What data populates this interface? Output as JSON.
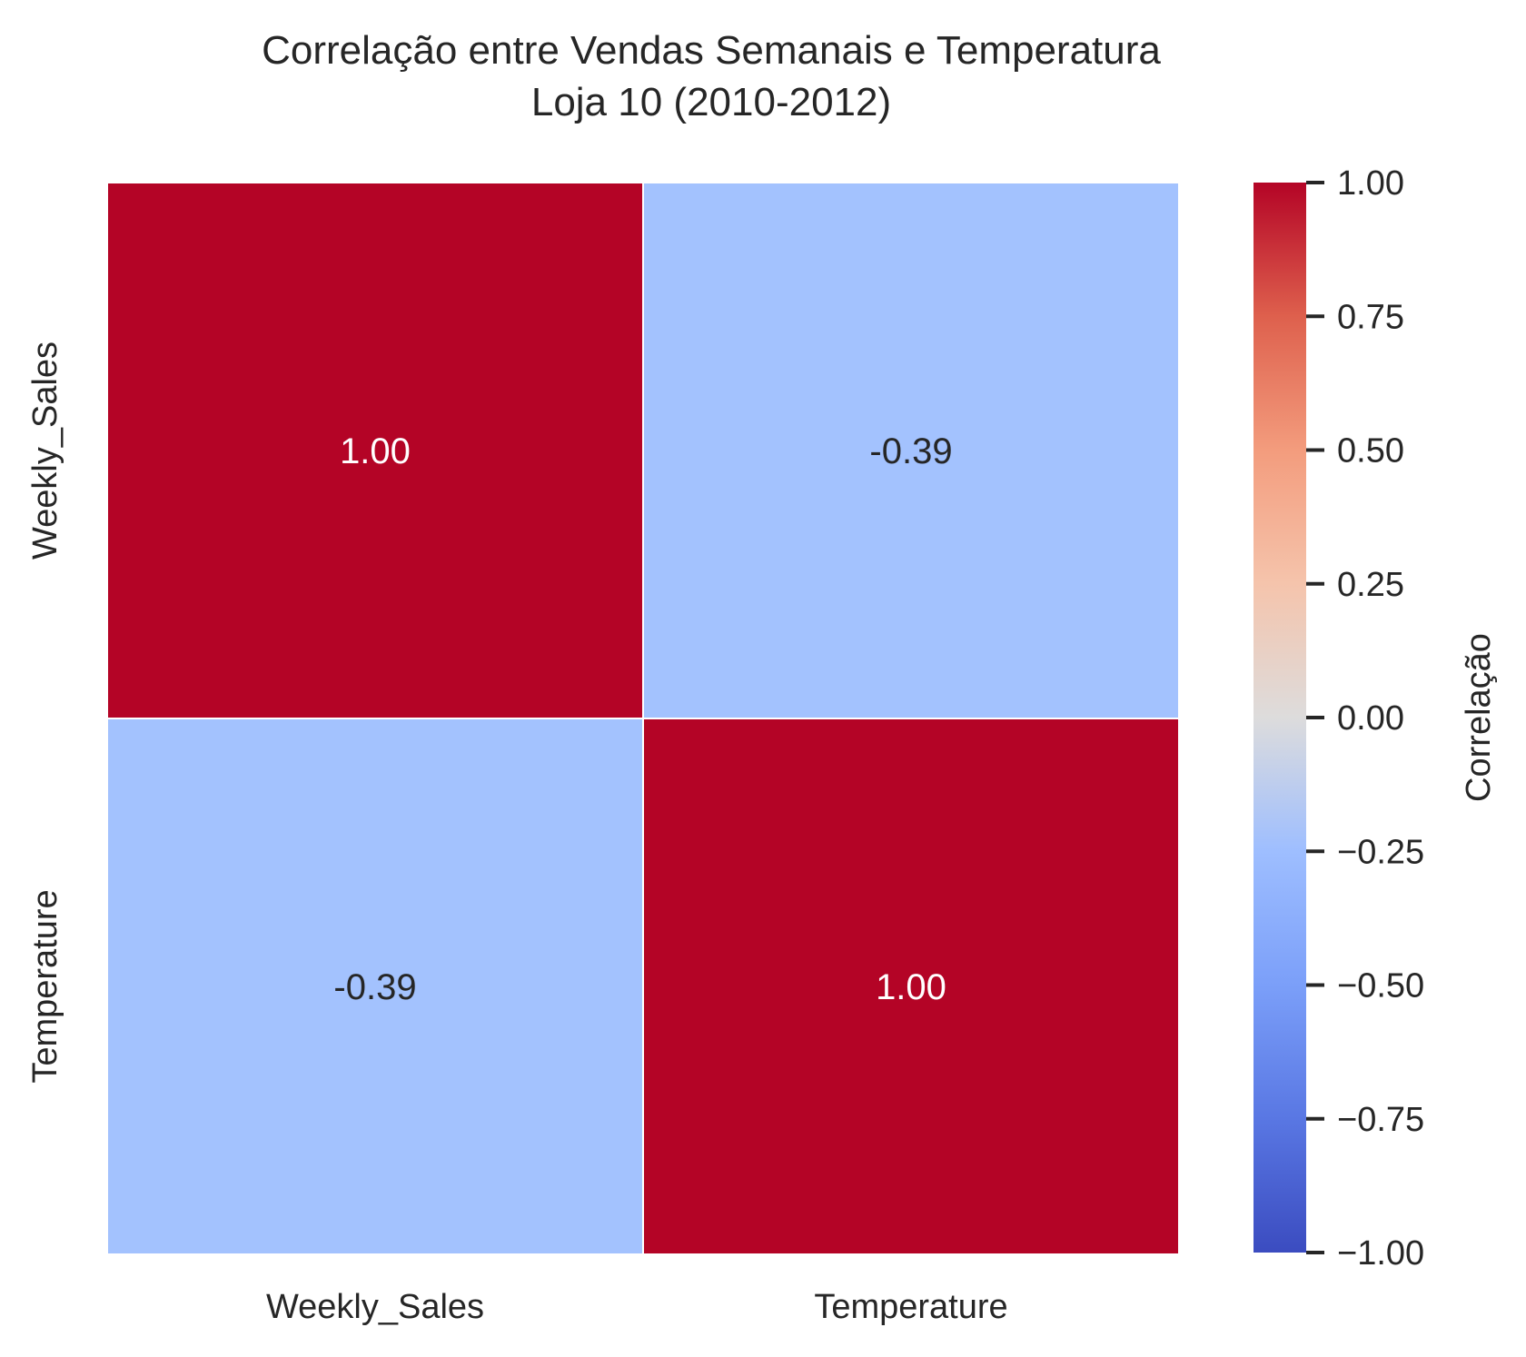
{
  "chart_data": {
    "type": "heatmap",
    "title": "Correlação entre Vendas Semanais e Temperatura",
    "subtitle": "Loja 10 (2010-2012)",
    "x_categories": [
      "Weekly_Sales",
      "Temperature"
    ],
    "y_categories": [
      "Weekly_Sales",
      "Temperature"
    ],
    "values": [
      [
        1.0,
        -0.39
      ],
      [
        -0.39,
        1.0
      ]
    ],
    "annotations": [
      [
        "1.00",
        "-0.39"
      ],
      [
        "-0.39",
        "1.00"
      ]
    ],
    "colormap": "coolwarm",
    "vmin": -1.0,
    "vmax": 1.0,
    "colorbar": {
      "label": "Correlação",
      "ticks": [
        1.0,
        0.75,
        0.5,
        0.25,
        0.0,
        -0.25,
        -0.5,
        -0.75,
        -1.0
      ],
      "tick_labels": [
        "1.00",
        "0.75",
        "0.50",
        "0.25",
        "0.00",
        "−0.25",
        "−0.50",
        "−0.75",
        "−1.00"
      ]
    },
    "colors": {
      "positive_one": "#b40426",
      "neg_039": "#a3c2fe",
      "zero": "#dddcdc",
      "negative_one": "#3b4cc0",
      "cell_border": "#ffffff",
      "text_dark": "#262626",
      "text_light": "#ffffff"
    }
  }
}
